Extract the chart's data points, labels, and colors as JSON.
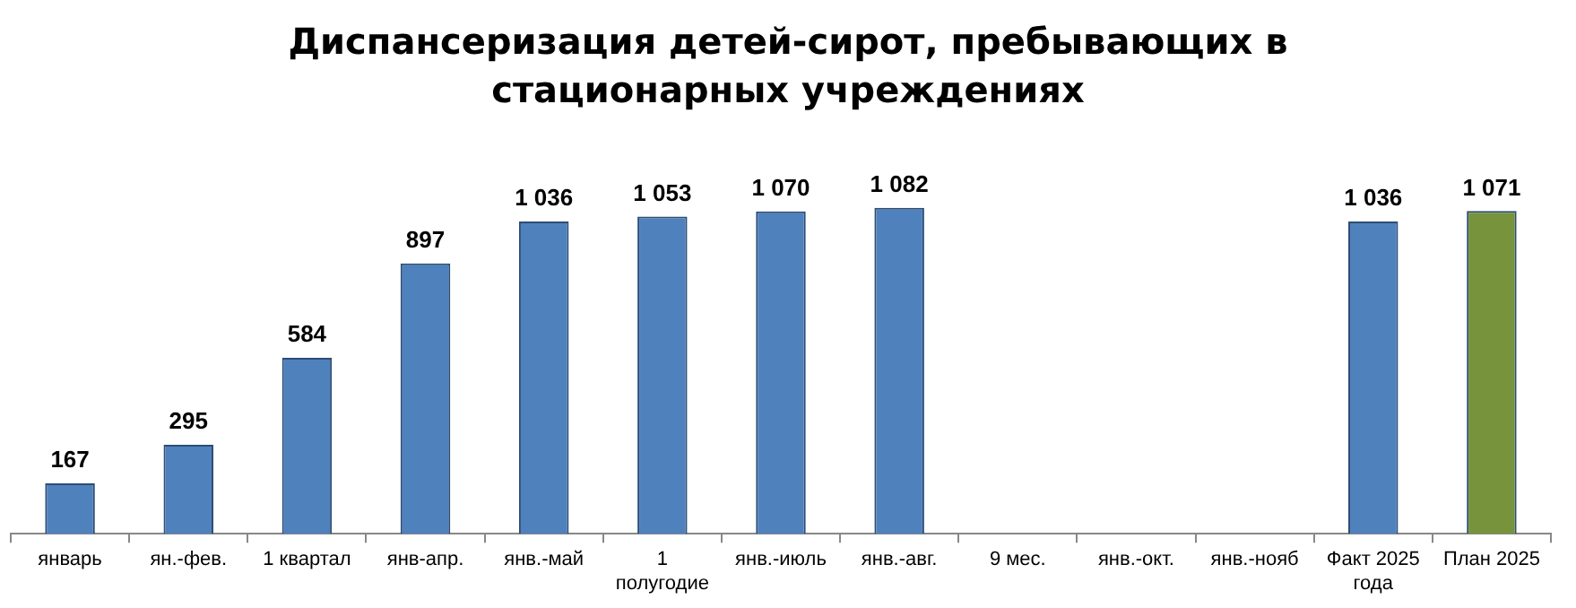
{
  "chart_data": {
    "type": "bar",
    "title": "Диспансеризация детей-сирот, пребывающих в стационарных учреждениях",
    "categories": [
      "январь",
      "ян.-фев.",
      "1 квартал",
      "янв-апр.",
      "янв.-май",
      "1 полугодие",
      "янв.-июль",
      "янв.-авг.",
      "9 мес.",
      "янв.-окт.",
      "янв.-нояб",
      "Факт 2025 года",
      "План 2025"
    ],
    "values": [
      167,
      295,
      584,
      897,
      1036,
      1053,
      1070,
      1082,
      null,
      null,
      null,
      1036,
      1071
    ],
    "colors": [
      "#4f81bd",
      "#4f81bd",
      "#4f81bd",
      "#4f81bd",
      "#4f81bd",
      "#4f81bd",
      "#4f81bd",
      "#4f81bd",
      "#4f81bd",
      "#4f81bd",
      "#4f81bd",
      "#4f81bd",
      "#77933c"
    ],
    "value_labels": [
      "167",
      "295",
      "584",
      "897",
      "1 036",
      "1 053",
      "1 070",
      "1 082",
      null,
      null,
      null,
      "1 036",
      "1 071"
    ],
    "grid": false,
    "legend": false
  }
}
